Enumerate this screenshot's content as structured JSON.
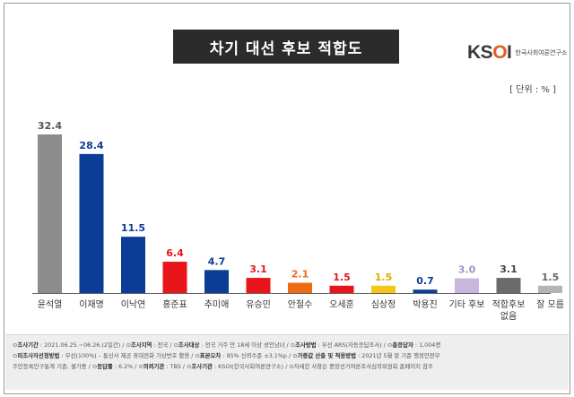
{
  "title": "차기 대선 후보 적합도",
  "logo": {
    "mark_a": "KS",
    "mark_b": "O",
    "mark_c": "I",
    "sub": "한국사회여론연구소"
  },
  "unit": "[ 단위 : % ]",
  "chart_data": {
    "type": "bar",
    "title": "차기 대선 후보 적합도",
    "unit": "%",
    "categories": [
      "윤석열",
      "이재명",
      "이낙연",
      "홍준표",
      "추미애",
      "유승민",
      "안철수",
      "오세훈",
      "심상정",
      "박용진",
      "기타 후보",
      "적합후보 없음",
      "잘 모름"
    ],
    "values": [
      32.4,
      28.4,
      11.5,
      6.4,
      4.7,
      3.1,
      2.1,
      1.5,
      1.5,
      0.7,
      3.0,
      3.1,
      1.5
    ],
    "value_labels": [
      "32.4",
      "28.4",
      "11.5",
      "6.4",
      "4.7",
      "3.1",
      "2.1",
      "1.5",
      "1.5",
      "0.7",
      "3.0",
      "3.1",
      "1.5"
    ],
    "colors": [
      "#8c8c8c",
      "#0b3c96",
      "#0b3c96",
      "#e8151b",
      "#0b3c96",
      "#e8151b",
      "#f06a14",
      "#e8151b",
      "#f7c516",
      "#0b3c96",
      "#c9b5dd",
      "#6b6b6b",
      "#b4b4b4"
    ],
    "label_colors": [
      "#555555",
      "#0b3c96",
      "#0b3c96",
      "#e8151b",
      "#0b3c96",
      "#e8151b",
      "#f06a14",
      "#e8151b",
      "#e0a800",
      "#0b3c96",
      "#a98ec9",
      "#444444",
      "#666666"
    ],
    "ylim": [
      0,
      35
    ],
    "grid": false,
    "legend": "none"
  },
  "footer": {
    "line1": [
      {
        "k": "조사기간",
        "v": " : 2021.06.25.~06.26.(2일간)"
      },
      {
        "k": "조사지역",
        "v": " : 전국"
      },
      {
        "k": "조사대상",
        "v": " : 전국 거주 만 18세 이상 성인남녀"
      },
      {
        "k": "조사방법",
        "v": " : 무선 ARS(자동응답조사)"
      },
      {
        "k": "총응답자",
        "v": " : 1,004명"
      }
    ],
    "line2": [
      {
        "k": "피조사자선정방법",
        "v": " : 무선(100%) – 통신사 제공 휴대전화 가상번호 활용"
      },
      {
        "k": "표본오차",
        "v": " : 95% 신뢰수준 ±3.1%p"
      },
      {
        "k": "가중값 산출 및 적용방법",
        "v": " : 2021년 5월 말 기준 행정안전부"
      }
    ],
    "line3": [
      {
        "k": "",
        "v": "주민등록인구통계 기준, 셀가중"
      },
      {
        "k": "응답률",
        "v": " : 6.2%"
      },
      {
        "k": "의뢰기관",
        "v": " : TBS"
      },
      {
        "k": "조사기관",
        "v": " : KSOI(한국사회여론연구소)"
      },
      {
        "k": "",
        "v": "자세한 사항은 중앙선거여론조사심의위원회 홈페이지 참조"
      }
    ]
  }
}
